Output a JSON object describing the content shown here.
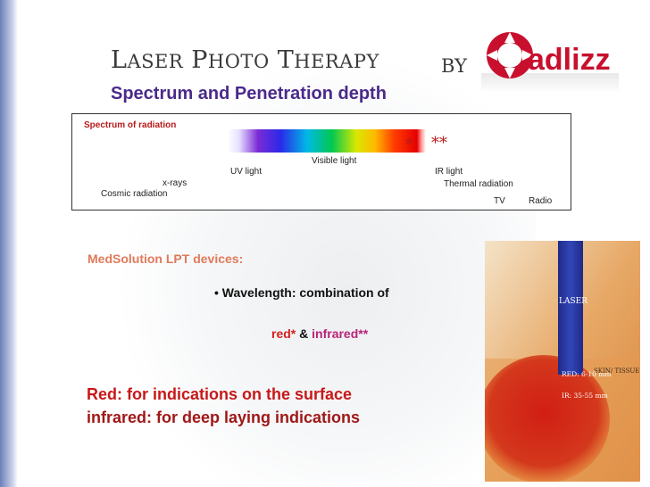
{
  "header": {
    "title_parts": [
      {
        "big": "L",
        "small": "ASER"
      },
      {
        "big": "P",
        "small": "HOTO"
      },
      {
        "big": "T",
        "small": "HERAPY"
      }
    ],
    "by_label": "BY",
    "logo_text": "adlizz",
    "subtitle": "Spectrum and Penetration depth"
  },
  "spectrum": {
    "title": "Spectrum of  radiation",
    "star_red": "*",
    "star_infrared": "**",
    "labels": {
      "visible": "Visible light",
      "uv": "UV light",
      "ir": "IR light",
      "xrays": "x-rays",
      "thermal": "Thermal radiation",
      "cosmic": "Cosmic radiation",
      "tv": "TV",
      "radio": "Radio"
    }
  },
  "devices": {
    "title": "MedSolution LPT devices:",
    "wavelength": "• Wavelength: combination of",
    "red": "red*",
    "amp": "&",
    "infrared": "infrared**"
  },
  "indications": {
    "red_line": "Red: for indications on the surface",
    "infrared_line": "infrared: for deep laying indications"
  },
  "figure": {
    "laser_label": "LASER",
    "skin_label": "SKIN/ TISSUE",
    "red_depth": "RED: 6-10 mm",
    "ir_depth": "IR: 35-55 mm"
  },
  "colors": {
    "subtitle": "#4a2a8a",
    "accent_red": "#c81818",
    "infrared": "#b8237a",
    "devices_title": "#e07a5a",
    "logo_red": "#c8102e"
  }
}
